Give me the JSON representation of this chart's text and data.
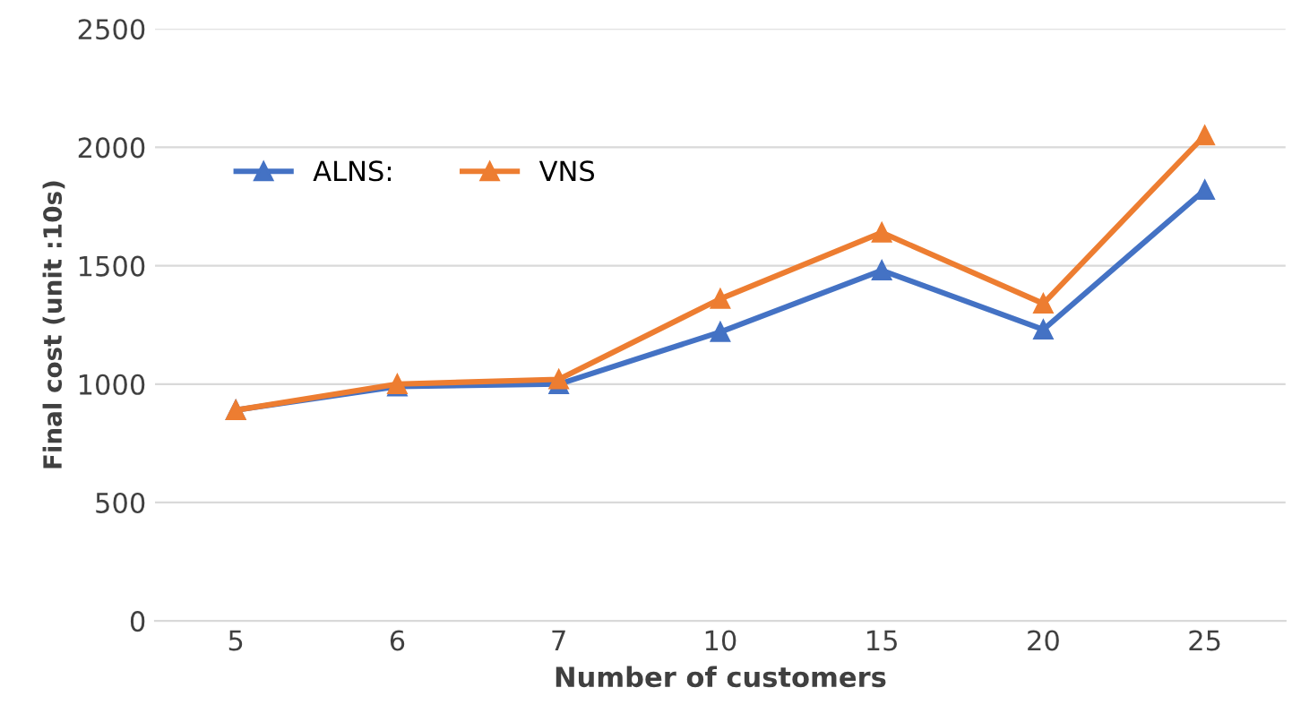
{
  "chart_data": {
    "type": "line",
    "xlabel": "Number of customers",
    "ylabel": "Final cost (unit :10s)",
    "categories": [
      "5",
      "6",
      "7",
      "10",
      "15",
      "20",
      "25"
    ],
    "series": [
      {
        "name": "ALNS:",
        "color": "#4472c4",
        "values": [
          890,
          990,
          1000,
          1220,
          1480,
          1230,
          1820
        ]
      },
      {
        "name": "VNS",
        "color": "#ed7d31",
        "values": [
          890,
          1000,
          1020,
          1360,
          1640,
          1340,
          2050
        ]
      }
    ],
    "ylim": [
      0,
      2500
    ],
    "yticks": [
      0,
      500,
      1000,
      1500,
      2000,
      2500
    ],
    "grid": "y",
    "legend": "top left",
    "marker": "triangle",
    "line_style": "solid"
  }
}
